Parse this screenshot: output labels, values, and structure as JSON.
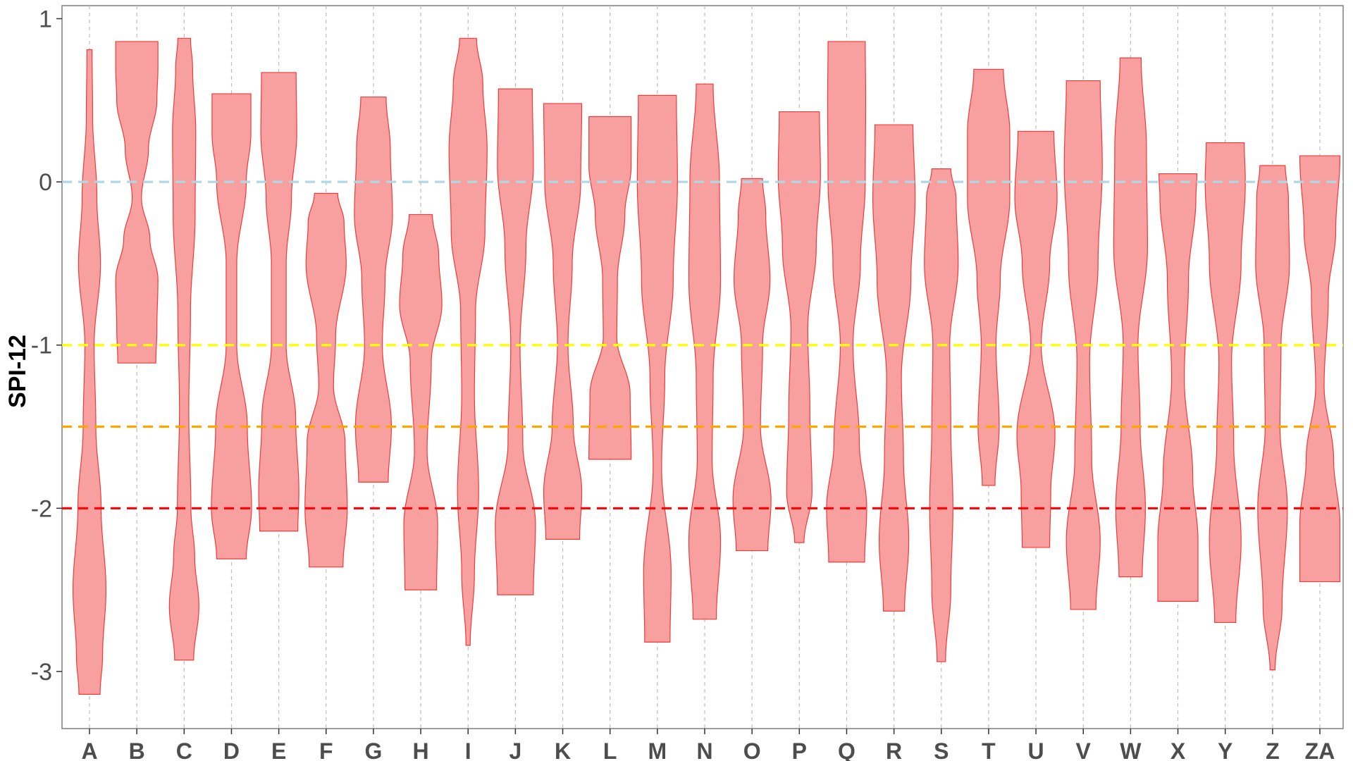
{
  "chart_data": {
    "type": "violin",
    "title": "",
    "xlabel": "",
    "ylabel": "SPI-12",
    "ylim": [
      -3.35,
      1.08
    ],
    "yticks": [
      1,
      0,
      -1,
      -2,
      -3
    ],
    "ytick_labels": [
      "1",
      "0",
      "-1",
      "-2",
      "-3"
    ],
    "grid": {
      "vertical": true,
      "horizontal": false
    },
    "reference_lines": [
      {
        "y": 0,
        "color": "#add8e6"
      },
      {
        "y": -1,
        "color": "#ffff00"
      },
      {
        "y": -1.5,
        "color": "#ffa500"
      },
      {
        "y": -2,
        "color": "#ff0000"
      }
    ],
    "fill_color": "#f8a0a0",
    "line_color": "#ee3b3b",
    "categories": [
      "A",
      "B",
      "C",
      "D",
      "E",
      "F",
      "G",
      "H",
      "I",
      "J",
      "K",
      "L",
      "M",
      "N",
      "O",
      "P",
      "Q",
      "R",
      "S",
      "T",
      "U",
      "V",
      "W",
      "X",
      "Y",
      "Z",
      "ZA"
    ],
    "violins": [
      {
        "category": "A",
        "min": -3.14,
        "max": 0.81,
        "profile": [
          [
            -3.14,
            0.5
          ],
          [
            -2.9,
            0.62
          ],
          [
            -2.5,
            0.78
          ],
          [
            -2.0,
            0.55
          ],
          [
            -1.5,
            0.3
          ],
          [
            -1.0,
            0.22
          ],
          [
            -0.5,
            0.52
          ],
          [
            -0.1,
            0.35
          ],
          [
            0.4,
            0.15
          ],
          [
            0.81,
            0.12
          ]
        ]
      },
      {
        "category": "B",
        "min": -1.11,
        "max": 0.86,
        "profile": [
          [
            -1.11,
            0.9
          ],
          [
            -0.9,
            0.95
          ],
          [
            -0.6,
            1.0
          ],
          [
            -0.35,
            0.62
          ],
          [
            -0.1,
            0.22
          ],
          [
            0.2,
            0.55
          ],
          [
            0.5,
            0.95
          ],
          [
            0.7,
            1.0
          ],
          [
            0.86,
            1.0
          ]
        ]
      },
      {
        "category": "C",
        "min": -2.93,
        "max": 0.88,
        "profile": [
          [
            -2.93,
            0.45
          ],
          [
            -2.6,
            0.7
          ],
          [
            -2.3,
            0.5
          ],
          [
            -2.0,
            0.32
          ],
          [
            -1.4,
            0.22
          ],
          [
            -0.8,
            0.3
          ],
          [
            -0.2,
            0.52
          ],
          [
            0.3,
            0.55
          ],
          [
            0.7,
            0.4
          ],
          [
            0.88,
            0.3
          ]
        ]
      },
      {
        "category": "D",
        "min": -2.31,
        "max": 0.54,
        "profile": [
          [
            -2.31,
            0.7
          ],
          [
            -2.0,
            0.95
          ],
          [
            -1.5,
            0.75
          ],
          [
            -1.0,
            0.25
          ],
          [
            -0.5,
            0.25
          ],
          [
            0.0,
            0.7
          ],
          [
            0.3,
            0.92
          ],
          [
            0.54,
            0.92
          ]
        ]
      },
      {
        "category": "E",
        "min": -2.14,
        "max": 0.67,
        "profile": [
          [
            -2.14,
            0.9
          ],
          [
            -1.9,
            0.95
          ],
          [
            -1.45,
            0.8
          ],
          [
            -1.0,
            0.35
          ],
          [
            -0.5,
            0.35
          ],
          [
            -0.1,
            0.6
          ],
          [
            0.3,
            0.85
          ],
          [
            0.67,
            0.82
          ]
        ]
      },
      {
        "category": "F",
        "min": -2.36,
        "max": -0.07,
        "profile": [
          [
            -2.36,
            0.8
          ],
          [
            -2.0,
            1.0
          ],
          [
            -1.6,
            0.9
          ],
          [
            -1.25,
            0.35
          ],
          [
            -0.95,
            0.45
          ],
          [
            -0.5,
            0.95
          ],
          [
            -0.25,
            0.85
          ],
          [
            -0.07,
            0.55
          ]
        ]
      },
      {
        "category": "G",
        "min": -1.84,
        "max": 0.52,
        "profile": [
          [
            -1.84,
            0.7
          ],
          [
            -1.5,
            0.85
          ],
          [
            -1.0,
            0.42
          ],
          [
            -0.6,
            0.55
          ],
          [
            -0.2,
            0.9
          ],
          [
            0.2,
            0.8
          ],
          [
            0.52,
            0.6
          ]
        ]
      },
      {
        "category": "H",
        "min": -2.5,
        "max": -0.2,
        "profile": [
          [
            -2.5,
            0.75
          ],
          [
            -2.1,
            0.8
          ],
          [
            -1.65,
            0.3
          ],
          [
            -1.1,
            0.5
          ],
          [
            -0.75,
            1.0
          ],
          [
            -0.45,
            0.85
          ],
          [
            -0.2,
            0.55
          ]
        ]
      },
      {
        "category": "I",
        "min": -2.84,
        "max": 0.88,
        "profile": [
          [
            -2.84,
            0.1
          ],
          [
            -2.4,
            0.3
          ],
          [
            -1.9,
            0.5
          ],
          [
            -1.3,
            0.3
          ],
          [
            -0.8,
            0.35
          ],
          [
            -0.3,
            0.8
          ],
          [
            0.2,
            0.9
          ],
          [
            0.6,
            0.7
          ],
          [
            0.88,
            0.4
          ]
        ]
      },
      {
        "category": "J",
        "min": -2.53,
        "max": 0.57,
        "profile": [
          [
            -2.53,
            0.85
          ],
          [
            -2.1,
            0.95
          ],
          [
            -1.6,
            0.35
          ],
          [
            -1.0,
            0.22
          ],
          [
            -0.4,
            0.5
          ],
          [
            0.1,
            0.85
          ],
          [
            0.57,
            0.8
          ]
        ]
      },
      {
        "category": "K",
        "min": -2.19,
        "max": 0.48,
        "profile": [
          [
            -2.19,
            0.8
          ],
          [
            -1.9,
            0.9
          ],
          [
            -1.5,
            0.5
          ],
          [
            -1.0,
            0.25
          ],
          [
            -0.5,
            0.45
          ],
          [
            0.0,
            0.85
          ],
          [
            0.48,
            0.9
          ]
        ]
      },
      {
        "category": "L",
        "min": -1.7,
        "max": 0.4,
        "profile": [
          [
            -1.7,
            1.0
          ],
          [
            -1.3,
            0.95
          ],
          [
            -0.95,
            0.32
          ],
          [
            -0.6,
            0.35
          ],
          [
            -0.2,
            0.7
          ],
          [
            0.1,
            1.0
          ],
          [
            0.4,
            1.0
          ]
        ]
      },
      {
        "category": "M",
        "min": -2.82,
        "max": 0.53,
        "profile": [
          [
            -2.82,
            0.6
          ],
          [
            -2.4,
            0.65
          ],
          [
            -1.75,
            0.2
          ],
          [
            -1.2,
            0.35
          ],
          [
            -0.6,
            0.75
          ],
          [
            0.0,
            0.95
          ],
          [
            0.53,
            0.9
          ]
        ]
      },
      {
        "category": "N",
        "min": -2.68,
        "max": 0.6,
        "profile": [
          [
            -2.68,
            0.55
          ],
          [
            -2.2,
            0.75
          ],
          [
            -1.7,
            0.35
          ],
          [
            -1.2,
            0.4
          ],
          [
            -0.6,
            0.75
          ],
          [
            0.0,
            0.7
          ],
          [
            0.6,
            0.4
          ]
        ]
      },
      {
        "category": "O",
        "min": -2.26,
        "max": 0.02,
        "profile": [
          [
            -2.26,
            0.75
          ],
          [
            -1.95,
            0.9
          ],
          [
            -1.5,
            0.4
          ],
          [
            -1.0,
            0.5
          ],
          [
            -0.6,
            0.85
          ],
          [
            -0.2,
            0.65
          ],
          [
            0.02,
            0.5
          ]
        ]
      },
      {
        "category": "P",
        "min": -2.21,
        "max": 0.43,
        "profile": [
          [
            -2.21,
            0.22
          ],
          [
            -1.9,
            0.6
          ],
          [
            -1.4,
            0.5
          ],
          [
            -0.9,
            0.4
          ],
          [
            -0.4,
            0.8
          ],
          [
            0.05,
            1.0
          ],
          [
            0.43,
            0.95
          ]
        ]
      },
      {
        "category": "Q",
        "min": -2.33,
        "max": 0.86,
        "profile": [
          [
            -2.33,
            0.85
          ],
          [
            -2.0,
            0.95
          ],
          [
            -1.6,
            0.6
          ],
          [
            -1.0,
            0.3
          ],
          [
            -0.5,
            0.65
          ],
          [
            0.0,
            0.88
          ],
          [
            0.5,
            0.9
          ],
          [
            0.86,
            0.88
          ]
        ]
      },
      {
        "category": "R",
        "min": -2.63,
        "max": 0.35,
        "profile": [
          [
            -2.63,
            0.5
          ],
          [
            -2.2,
            0.7
          ],
          [
            -1.7,
            0.45
          ],
          [
            -1.2,
            0.35
          ],
          [
            -0.6,
            0.8
          ],
          [
            -0.1,
            1.0
          ],
          [
            0.35,
            0.9
          ]
        ]
      },
      {
        "category": "S",
        "min": -2.94,
        "max": 0.08,
        "profile": [
          [
            -2.94,
            0.2
          ],
          [
            -2.5,
            0.45
          ],
          [
            -2.0,
            0.55
          ],
          [
            -1.5,
            0.45
          ],
          [
            -1.0,
            0.4
          ],
          [
            -0.5,
            0.8
          ],
          [
            -0.1,
            0.7
          ],
          [
            0.08,
            0.45
          ]
        ]
      },
      {
        "category": "T",
        "min": -1.86,
        "max": 0.69,
        "profile": [
          [
            -1.86,
            0.3
          ],
          [
            -1.5,
            0.5
          ],
          [
            -1.0,
            0.35
          ],
          [
            -0.6,
            0.55
          ],
          [
            -0.1,
            1.0
          ],
          [
            0.3,
            1.0
          ],
          [
            0.69,
            0.7
          ]
        ]
      },
      {
        "category": "U",
        "min": -2.24,
        "max": 0.31,
        "profile": [
          [
            -2.24,
            0.65
          ],
          [
            -1.9,
            0.7
          ],
          [
            -1.55,
            0.9
          ],
          [
            -1.0,
            0.25
          ],
          [
            -0.5,
            0.65
          ],
          [
            -0.1,
            1.0
          ],
          [
            0.31,
            0.85
          ]
        ]
      },
      {
        "category": "V",
        "min": -2.62,
        "max": 0.62,
        "profile": [
          [
            -2.62,
            0.6
          ],
          [
            -2.2,
            0.8
          ],
          [
            -1.7,
            0.4
          ],
          [
            -1.1,
            0.3
          ],
          [
            -0.5,
            0.7
          ],
          [
            0.1,
            0.9
          ],
          [
            0.62,
            0.8
          ]
        ]
      },
      {
        "category": "W",
        "min": -2.42,
        "max": 0.76,
        "profile": [
          [
            -2.42,
            0.55
          ],
          [
            -2.0,
            0.7
          ],
          [
            -1.5,
            0.45
          ],
          [
            -1.0,
            0.35
          ],
          [
            -0.4,
            0.8
          ],
          [
            0.2,
            0.75
          ],
          [
            0.76,
            0.5
          ]
        ]
      },
      {
        "category": "X",
        "min": -2.57,
        "max": 0.05,
        "profile": [
          [
            -2.57,
            0.95
          ],
          [
            -2.2,
            0.95
          ],
          [
            -1.8,
            0.7
          ],
          [
            -1.2,
            0.3
          ],
          [
            -0.6,
            0.5
          ],
          [
            -0.1,
            0.85
          ],
          [
            0.05,
            0.9
          ]
        ]
      },
      {
        "category": "Y",
        "min": -2.7,
        "max": 0.24,
        "profile": [
          [
            -2.7,
            0.5
          ],
          [
            -2.2,
            0.75
          ],
          [
            -1.6,
            0.4
          ],
          [
            -1.1,
            0.3
          ],
          [
            -0.5,
            0.75
          ],
          [
            0.0,
            0.95
          ],
          [
            0.24,
            0.9
          ]
        ]
      },
      {
        "category": "Z",
        "min": -2.99,
        "max": 0.1,
        "profile": [
          [
            -2.99,
            0.12
          ],
          [
            -2.6,
            0.45
          ],
          [
            -2.0,
            0.7
          ],
          [
            -1.5,
            0.35
          ],
          [
            -1.0,
            0.4
          ],
          [
            -0.5,
            0.8
          ],
          [
            -0.1,
            0.75
          ],
          [
            0.1,
            0.6
          ]
        ]
      },
      {
        "category": "ZA",
        "min": -2.45,
        "max": 0.16,
        "profile": [
          [
            -2.45,
            0.95
          ],
          [
            -2.1,
            0.95
          ],
          [
            -1.7,
            0.65
          ],
          [
            -1.25,
            0.2
          ],
          [
            -0.7,
            0.4
          ],
          [
            -0.3,
            0.75
          ],
          [
            0.16,
            0.95
          ]
        ]
      }
    ]
  }
}
